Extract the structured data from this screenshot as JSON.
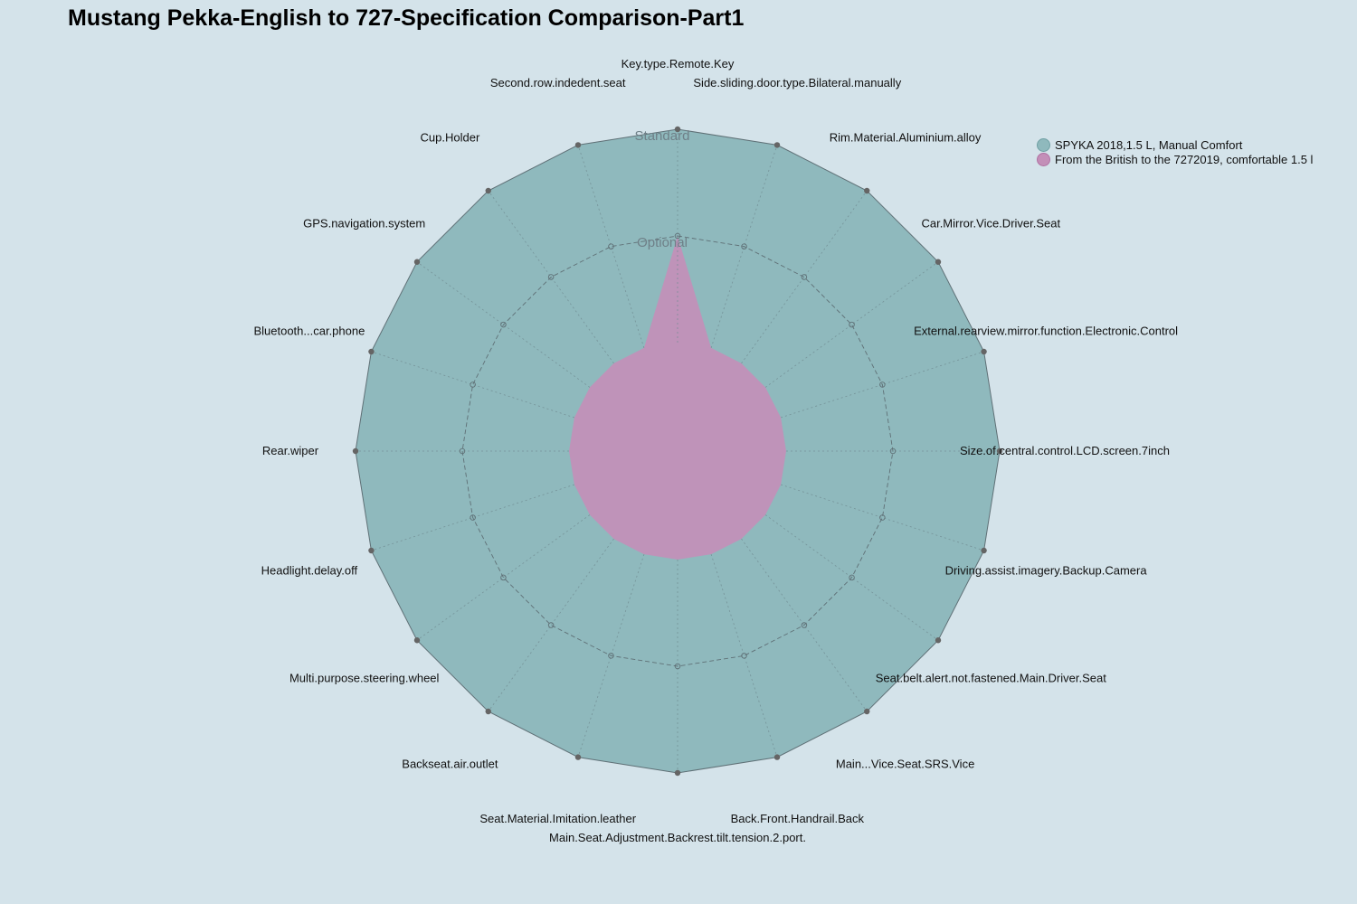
{
  "chart_data": {
    "type": "radar",
    "title": "Mustang Pekka-English to 727-Specification Comparison-Part1",
    "axes": [
      "Key.type.Remote.Key",
      "Side.sliding.door.type.Bilateral.manually",
      "Rim.Material.Aluminium.alloy",
      "Car.Mirror.Vice.Driver.Seat",
      "External.rearview.mirror.function.Electronic.Control",
      "Size.of.central.control.LCD.screen.7inch",
      "Driving.assist.imagery.Backup.Camera",
      "Seat.belt.alert.not.fastened.Main.Driver.Seat",
      "Main...Vice.Seat.SRS.Vice",
      "Back.Front.Handrail.Back",
      "Main.Seat.Adjustment.Backrest.tilt.tension.2.port.",
      "Seat.Material.Imitation.leather",
      "Backseat.air.outlet",
      "Multi.purpose.steering.wheel",
      "Headlight.delay.off",
      "Rear.wiper",
      "Bluetooth...car.phone",
      "GPS.navigation.system",
      "Cup.Holder",
      "Second.row.indedent.seat"
    ],
    "ring_labels": [
      "Optional",
      "Standard"
    ],
    "scale": {
      "min": 0,
      "max": 2
    },
    "series": [
      {
        "name": "SPYKA 2018,1.5 L, Manual Comfort",
        "color": "#8fb9bd",
        "values": [
          2,
          2,
          2,
          2,
          2,
          2,
          2,
          2,
          2,
          2,
          2,
          2,
          2,
          2,
          2,
          2,
          2,
          2,
          2,
          2
        ]
      },
      {
        "name": "From the British to the 7272019, comfortable 1.5 l",
        "color": "#c38fb8",
        "values": [
          1,
          0,
          0,
          0,
          0,
          0,
          0,
          0,
          0,
          0,
          0,
          0,
          0,
          0,
          0,
          0,
          0,
          0,
          0,
          0
        ]
      }
    ],
    "legend_position": "top-right",
    "grid": true
  }
}
